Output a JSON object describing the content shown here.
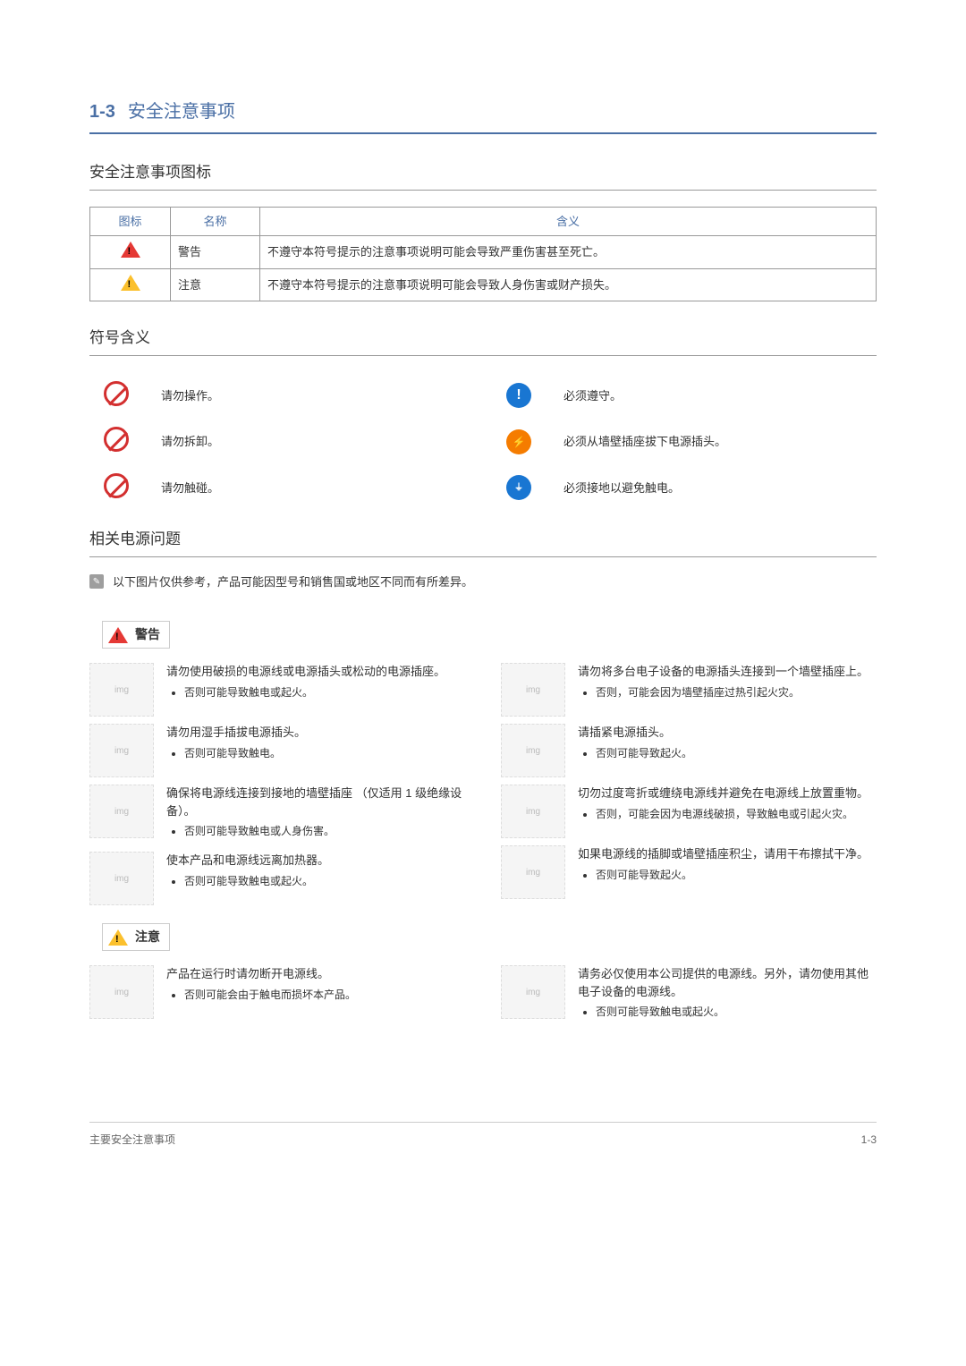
{
  "section_num": "1-3",
  "section_title": "安全注意事项",
  "sub_icons": "安全注意事项图标",
  "table": {
    "headers": [
      "图标",
      "名称",
      "含义"
    ],
    "rows": [
      {
        "name": "警告",
        "meaning": "不遵守本符号提示的注意事项说明可能会导致严重伤害甚至死亡。",
        "tri": "red"
      },
      {
        "name": "注意",
        "meaning": "不遵守本符号提示的注意事项说明可能会导致人身伤害或财产损失。",
        "tri": "yellow"
      }
    ]
  },
  "sub_symbols": "符号含义",
  "symbols": [
    {
      "icon": "prohibit",
      "text": "请勿操作。"
    },
    {
      "icon": "must",
      "text": "必须遵守。"
    },
    {
      "icon": "no-disassemble",
      "text": "请勿拆卸。"
    },
    {
      "icon": "unplug",
      "text": "必须从墙壁插座拔下电源插头。"
    },
    {
      "icon": "no-touch",
      "text": "请勿触碰。"
    },
    {
      "icon": "ground",
      "text": "必须接地以避免触电。"
    }
  ],
  "sub_power": "相关电源问题",
  "note": "以下图片仅供参考，产品可能因型号和销售国或地区不同而有所差异。",
  "warning_label": "警告",
  "caution_label": "注意",
  "warning_items_left": [
    {
      "main": "请勿使用破损的电源线或电源插头或松动的电源插座。",
      "sub": "否则可能导致触电或起火。"
    },
    {
      "main": "请勿用湿手插拔电源插头。",
      "sub": "否则可能导致触电。"
    },
    {
      "main": "确保将电源线连接到接地的墙壁插座 （仅适用 1 级绝缘设备）。",
      "sub": "否则可能导致触电或人身伤害。"
    },
    {
      "main": "使本产品和电源线远离加热器。",
      "sub": "否则可能导致触电或起火。"
    }
  ],
  "warning_items_right": [
    {
      "main": "请勿将多台电子设备的电源插头连接到一个墙壁插座上。",
      "sub": "否则，可能会因为墙壁插座过热引起火灾。"
    },
    {
      "main": "请插紧电源插头。",
      "sub": "否则可能导致起火。"
    },
    {
      "main": "切勿过度弯折或缠绕电源线并避免在电源线上放置重物。",
      "sub": "否则，可能会因为电源线破损，导致触电或引起火灾。"
    },
    {
      "main": "如果电源线的插脚或墙壁插座积尘，请用干布擦拭干净。",
      "sub": "否则可能导致起火。"
    }
  ],
  "caution_items_left": [
    {
      "main": "产品在运行时请勿断开电源线。",
      "sub": "否则可能会由于触电而损坏本产品。"
    }
  ],
  "caution_items_right": [
    {
      "main": "请务必仅使用本公司提供的电源线。另外，请勿使用其他电子设备的电源线。",
      "sub": "否则可能导致触电或起火。"
    }
  ],
  "footer_left": "主要安全注意事项",
  "footer_right": "1-3"
}
